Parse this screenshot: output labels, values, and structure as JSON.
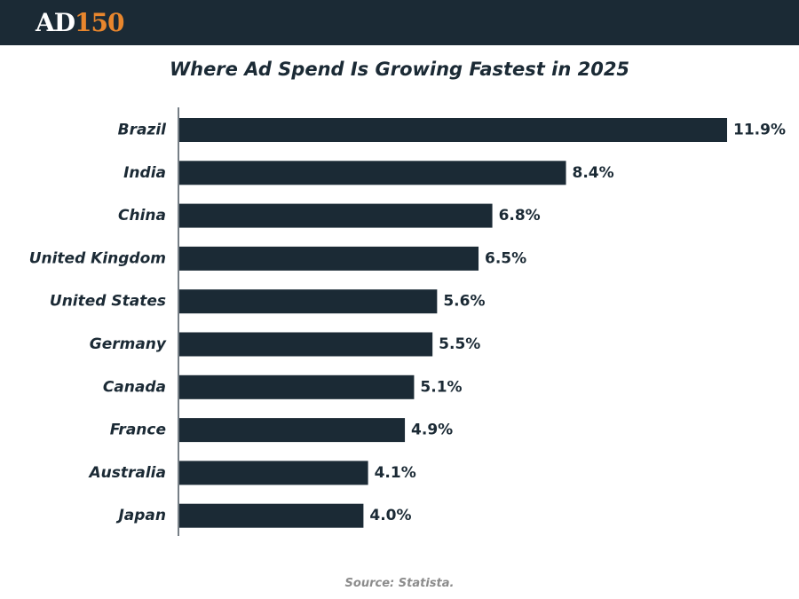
{
  "header": {
    "logo_main": "AD",
    "logo_accent": "150"
  },
  "colors": {
    "bar": "#1b2a35",
    "header_bg": "#1b2a35",
    "logo_accent": "#e8862d",
    "source_text": "#8c8c8c"
  },
  "chart_data": {
    "type": "bar",
    "orientation": "horizontal",
    "title": "Where Ad Spend Is Growing Fastest in 2025",
    "categories": [
      "Brazil",
      "India",
      "China",
      "United Kingdom",
      "United States",
      "Germany",
      "Canada",
      "France",
      "Australia",
      "Japan"
    ],
    "values": [
      11.9,
      8.4,
      6.8,
      6.5,
      5.6,
      5.5,
      5.1,
      4.9,
      4.1,
      4.0
    ],
    "value_labels": [
      "11.9%",
      "8.4%",
      "6.8%",
      "6.5%",
      "5.6%",
      "5.5%",
      "5.1%",
      "4.9%",
      "4.1%",
      "4.0%"
    ],
    "xlim": [
      0,
      11.9
    ],
    "grid": false,
    "legend": "none"
  },
  "source": "Source: Statista."
}
